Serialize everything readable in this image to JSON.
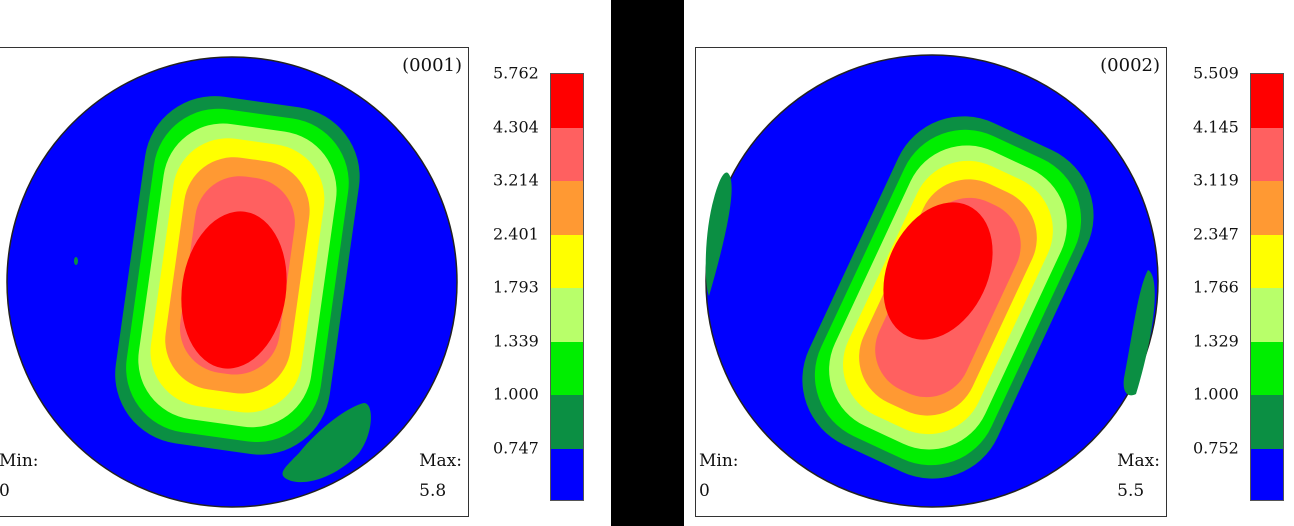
{
  "chart_data": [
    {
      "type": "contour",
      "plane": "(0001)",
      "min_label": "Min:",
      "min_value": "0",
      "max_label": "Max:",
      "max_value": "5.8",
      "colorbar_ticks": [
        "5.762",
        "4.304",
        "3.214",
        "2.401",
        "1.793",
        "1.339",
        "1.000",
        "0.747"
      ],
      "colors": [
        "#ff0000",
        "#ff6060",
        "#ff9933",
        "#ffff00",
        "#b8ff6a",
        "#00ee00",
        "#0b8f43",
        "#0000ff"
      ]
    },
    {
      "type": "contour",
      "plane": "(0002)",
      "min_label": "Min:",
      "min_value": "0",
      "max_label": "Max:",
      "max_value": "5.5",
      "colorbar_ticks": [
        "5.509",
        "4.145",
        "3.119",
        "2.347",
        "1.766",
        "1.329",
        "1.000",
        "0.752"
      ],
      "colors": [
        "#ff0000",
        "#ff6060",
        "#ff9933",
        "#ffff00",
        "#b8ff6a",
        "#00ee00",
        "#0b8f43",
        "#0000ff"
      ]
    }
  ]
}
